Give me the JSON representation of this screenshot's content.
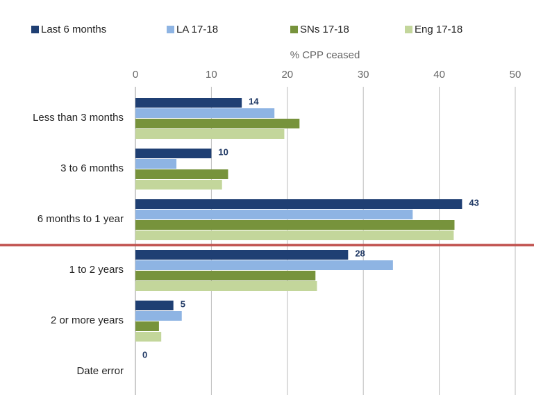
{
  "chart_data": {
    "type": "hbar",
    "xlabel": "% CPP ceased",
    "categories": [
      "Less than 3 months",
      "3 to 6 months",
      "6 months to 1 year",
      "1 to 2 years",
      "2 or more years",
      "Date error"
    ],
    "series": [
      {
        "name": "Last 6 months",
        "color": "#1f3f73",
        "values": [
          14,
          10,
          43,
          28,
          5,
          0
        ],
        "show_labels": true
      },
      {
        "name": "LA 17-18",
        "color": "#8eb4e3",
        "values": [
          18.3,
          5.4,
          36.5,
          33.9,
          6.1,
          0
        ]
      },
      {
        "name": "SNs 17-18",
        "color": "#77933c",
        "values": [
          21.6,
          12.2,
          42.0,
          23.7,
          3.1,
          0
        ]
      },
      {
        "name": "Eng 17-18",
        "color": "#c3d69b",
        "values": [
          19.6,
          11.4,
          41.9,
          23.9,
          3.4,
          0
        ]
      }
    ],
    "xlim": [
      0,
      50
    ],
    "xticks": [
      0,
      10,
      20,
      30,
      40,
      50
    ],
    "grid": true,
    "legend": "top"
  }
}
